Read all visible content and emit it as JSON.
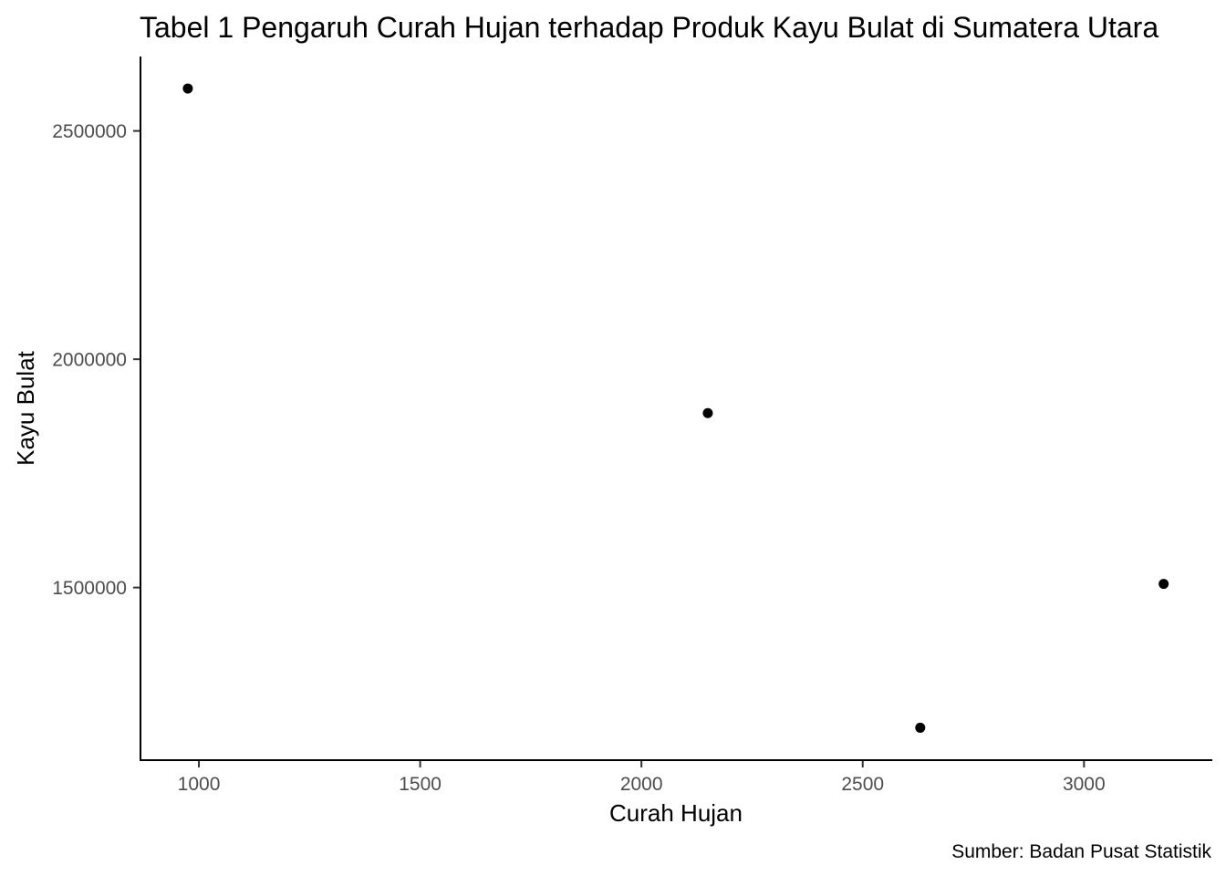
{
  "chart_data": {
    "type": "scatter",
    "title": "Tabel 1 Pengaruh Curah Hujan terhadap Produk Kayu Bulat di Sumatera Utara",
    "xlabel": "Curah Hujan",
    "ylabel": "Kayu Bulat",
    "caption": "Sumber: Badan Pusat Statistik",
    "xlim": [
      868,
      3290
    ],
    "ylim": [
      1122000,
      2663000
    ],
    "x_ticks": [
      1000,
      1500,
      2000,
      2500,
      3000
    ],
    "x_tick_labels": [
      "1000",
      "1500",
      "2000",
      "2500",
      "3000"
    ],
    "y_ticks": [
      1500000,
      2000000,
      2500000
    ],
    "y_tick_labels": [
      "1500000",
      "2000000",
      "2500000"
    ],
    "grid": false,
    "point_color": "#000000",
    "points": [
      {
        "x": 975,
        "y": 2593000
      },
      {
        "x": 2150,
        "y": 1882000
      },
      {
        "x": 2630,
        "y": 1193000
      },
      {
        "x": 3180,
        "y": 1508000
      }
    ]
  }
}
